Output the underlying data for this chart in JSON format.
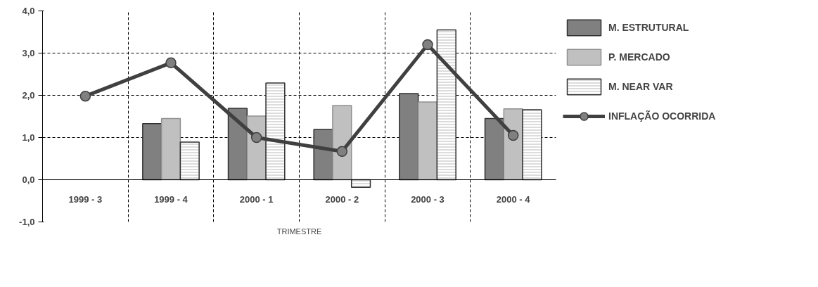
{
  "chart_data": {
    "type": "bar",
    "xlabel": "TRIMESTRE",
    "categories": [
      "1999 - 3",
      "1999 - 4",
      "2000 - 1",
      "2000 - 2",
      "2000 - 3",
      "2000 - 4"
    ],
    "series": [
      {
        "name": "M. ESTRUTURAL",
        "color": "#808080",
        "values": [
          null,
          1.33,
          1.69,
          1.19,
          2.04,
          1.45
        ]
      },
      {
        "name": "P. MERCADO",
        "color": "#c0c0c0",
        "values": [
          null,
          1.45,
          1.51,
          1.76,
          1.84,
          1.68
        ]
      },
      {
        "name": "M. NEAR VAR",
        "color": "#dcdcdc",
        "values": [
          null,
          0.89,
          2.29,
          -0.18,
          3.55,
          1.66
        ]
      },
      {
        "name": "INFLAÇÃO OCORRIDA",
        "type": "line",
        "color": "#404040",
        "values": [
          1.98,
          2.77,
          1.0,
          0.67,
          3.2,
          1.05
        ]
      }
    ],
    "ylim": [
      -1.0,
      4.0
    ],
    "yticks": [
      {
        "value": -1.0,
        "label": "-1,0"
      },
      {
        "value": 0.0,
        "label": "0,0"
      },
      {
        "value": 1.0,
        "label": "1,0"
      },
      {
        "value": 2.0,
        "label": "2,0"
      },
      {
        "value": 3.0,
        "label": "3,0"
      },
      {
        "value": 4.0,
        "label": "4,0"
      }
    ],
    "grid": true,
    "legend": "right",
    "marker": "circle"
  }
}
